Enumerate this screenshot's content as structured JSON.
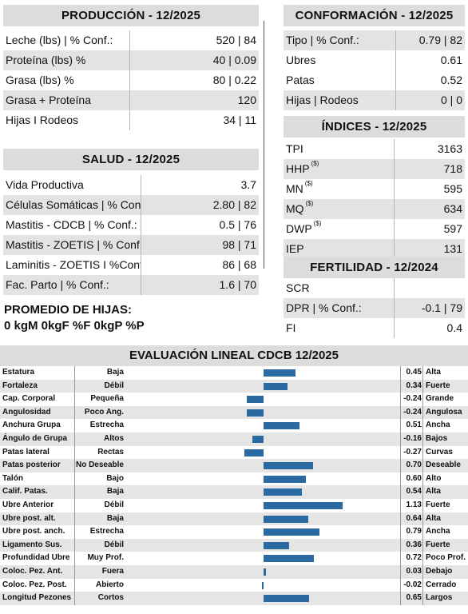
{
  "produccion": {
    "title": "PRODUCCIÓN - 12/2025",
    "rows": [
      {
        "label": "Leche (lbs) | % Conf.:",
        "value": "520 | 84"
      },
      {
        "label": "Proteína (lbs) %",
        "value": "40 | 0.09"
      },
      {
        "label": "Grasa (lbs) %",
        "value": "80 | 0.22"
      },
      {
        "label": "Grasa + Proteína",
        "value": "120"
      },
      {
        "label": "Hijas I Rodeos",
        "value": "34 | 11"
      }
    ]
  },
  "salud": {
    "title": "SALUD - 12/2025",
    "rows": [
      {
        "label": "Vida Productiva",
        "value": "3.7"
      },
      {
        "label": "Células Somáticas | % Conf.:",
        "value": "2.80 | 82"
      },
      {
        "label": "Mastitis - CDCB | % Conf.:",
        "value": "0.5 | 76"
      },
      {
        "label": "Mastitis - ZOETIS | % Conf.:",
        "value": "98 | 71"
      },
      {
        "label": "Laminitis - ZOETIS I %Conf.:",
        "value": "86 | 68"
      },
      {
        "label": "Fac. Parto | % Conf.:",
        "value": "1.6 | 70"
      }
    ]
  },
  "promedio": {
    "title": "PROMEDIO DE HIJAS:",
    "line": "0 kgM 0kgF %F 0kgP %P"
  },
  "conformacion": {
    "title": "CONFORMACIÓN - 12/2025",
    "rows": [
      {
        "label": "Tipo | % Conf.:",
        "value": "0.79 | 82"
      },
      {
        "label": "Ubres",
        "value": "0.61"
      },
      {
        "label": "Patas",
        "value": "0.52"
      },
      {
        "label": "Hijas | Rodeos",
        "value": "0 | 0"
      }
    ]
  },
  "indices": {
    "title": "ÍNDICES - 12/2025",
    "rows": [
      {
        "label": "TPI",
        "sup": "",
        "value": "3163"
      },
      {
        "label": "HHP",
        "sup": "($)",
        "value": "718"
      },
      {
        "label": "MN",
        "sup": "($)",
        "value": "595"
      },
      {
        "label": "MQ",
        "sup": "($)",
        "value": "634"
      },
      {
        "label": "DWP",
        "sup": "($)",
        "value": "597"
      },
      {
        "label": "IEP",
        "sup": "",
        "value": "131"
      }
    ]
  },
  "fertilidad": {
    "title": "FERTILIDAD - 12/2024",
    "rows": [
      {
        "label": "SCR",
        "value": ""
      },
      {
        "label": "DPR | % Conf.:",
        "value": "-0.1 | 79"
      },
      {
        "label": "FI",
        "value": "0.4"
      }
    ]
  },
  "lineal": {
    "title": "EVALUACIÓN LINEAL CDCB 12/2025",
    "scale_max": 1.3,
    "bar_color": "#2a6aa0",
    "rows": [
      {
        "trait": "Estatura",
        "low": "Baja",
        "value": 0.45,
        "value_text": "0.45",
        "high": "Alta"
      },
      {
        "trait": "Fortaleza",
        "low": "Débil",
        "value": 0.34,
        "value_text": "0.34",
        "high": "Fuerte"
      },
      {
        "trait": "Cap. Corporal",
        "low": "Pequeña",
        "value": -0.24,
        "value_text": "-0.24",
        "high": "Grande"
      },
      {
        "trait": "Angulosidad",
        "low": "Poco Ang.",
        "value": -0.24,
        "value_text": "-0.24",
        "high": "Angulosa"
      },
      {
        "trait": "Anchura Grupa",
        "low": "Estrecha",
        "value": 0.51,
        "value_text": "0.51",
        "high": "Ancha"
      },
      {
        "trait": "Ángulo de Grupa",
        "low": "Altos",
        "value": -0.16,
        "value_text": "-0.16",
        "high": "Bajos"
      },
      {
        "trait": "Patas lateral",
        "low": "Rectas",
        "value": -0.27,
        "value_text": "-0.27",
        "high": "Curvas"
      },
      {
        "trait": "Patas posterior",
        "low": "No Deseable",
        "value": 0.7,
        "value_text": "0.70",
        "high": "Deseable"
      },
      {
        "trait": "Talón",
        "low": "Bajo",
        "value": 0.6,
        "value_text": "0.60",
        "high": "Alto"
      },
      {
        "trait": "Calif. Patas.",
        "low": "Baja",
        "value": 0.54,
        "value_text": "0.54",
        "high": "Alta"
      },
      {
        "trait": "Ubre Anterior",
        "low": "Débil",
        "value": 1.13,
        "value_text": "1.13",
        "high": "Fuerte"
      },
      {
        "trait": "Ubre post. alt.",
        "low": "Baja",
        "value": 0.64,
        "value_text": "0.64",
        "high": "Alta"
      },
      {
        "trait": "Ubre post. anch.",
        "low": "Estrecha",
        "value": 0.79,
        "value_text": "0.79",
        "high": "Ancha"
      },
      {
        "trait": "Ligamento Sus.",
        "low": "Débil",
        "value": 0.36,
        "value_text": "0.36",
        "high": "Fuerte"
      },
      {
        "trait": "Profundidad Ubre",
        "low": "Muy Prof.",
        "value": 0.72,
        "value_text": "0.72",
        "high": "Poco Prof."
      },
      {
        "trait": "Coloc. Pez. Ant.",
        "low": "Fuera",
        "value": 0.03,
        "value_text": "0.03",
        "high": "Debajo"
      },
      {
        "trait": "Coloc. Pez. Post.",
        "low": "Abierto",
        "value": -0.02,
        "value_text": "-0.02",
        "high": "Cerrado"
      },
      {
        "trait": "Longitud Pezones",
        "low": "Cortos",
        "value": 0.65,
        "value_text": "0.65",
        "high": "Largos"
      }
    ]
  }
}
